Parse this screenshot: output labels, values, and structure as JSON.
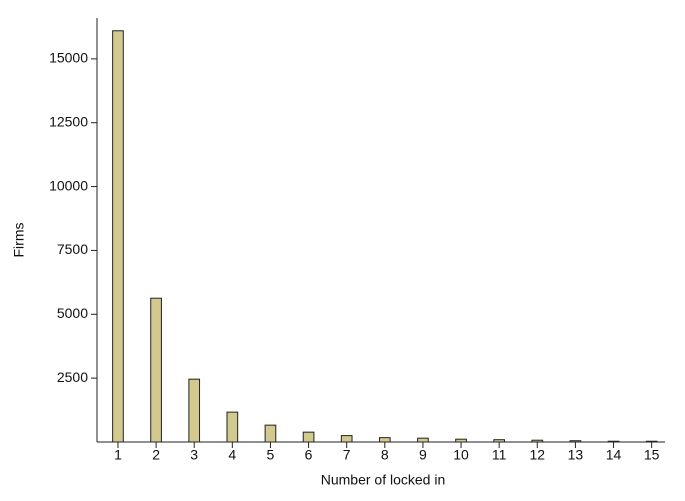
{
  "chart_data": {
    "type": "bar",
    "x_label": "Number of locked in",
    "y_label": "Firms",
    "x": [
      1,
      2,
      3,
      4,
      5,
      6,
      7,
      8,
      9,
      10,
      11,
      12,
      13,
      14,
      15
    ],
    "values": [
      16100,
      5630,
      2460,
      1170,
      660,
      385,
      250,
      170,
      150,
      110,
      90,
      70,
      50,
      30,
      30
    ],
    "color": "#d2c98f",
    "xlim": [
      0.45,
      15.35
    ],
    "xticks": [
      1,
      2,
      3,
      4,
      5,
      6,
      7,
      8,
      9,
      10,
      11,
      12,
      13,
      14,
      15
    ],
    "ylim": [
      0,
      16600
    ],
    "yticks": [
      2500,
      5000,
      7500,
      10000,
      12500,
      15000
    ],
    "grid": false
  }
}
